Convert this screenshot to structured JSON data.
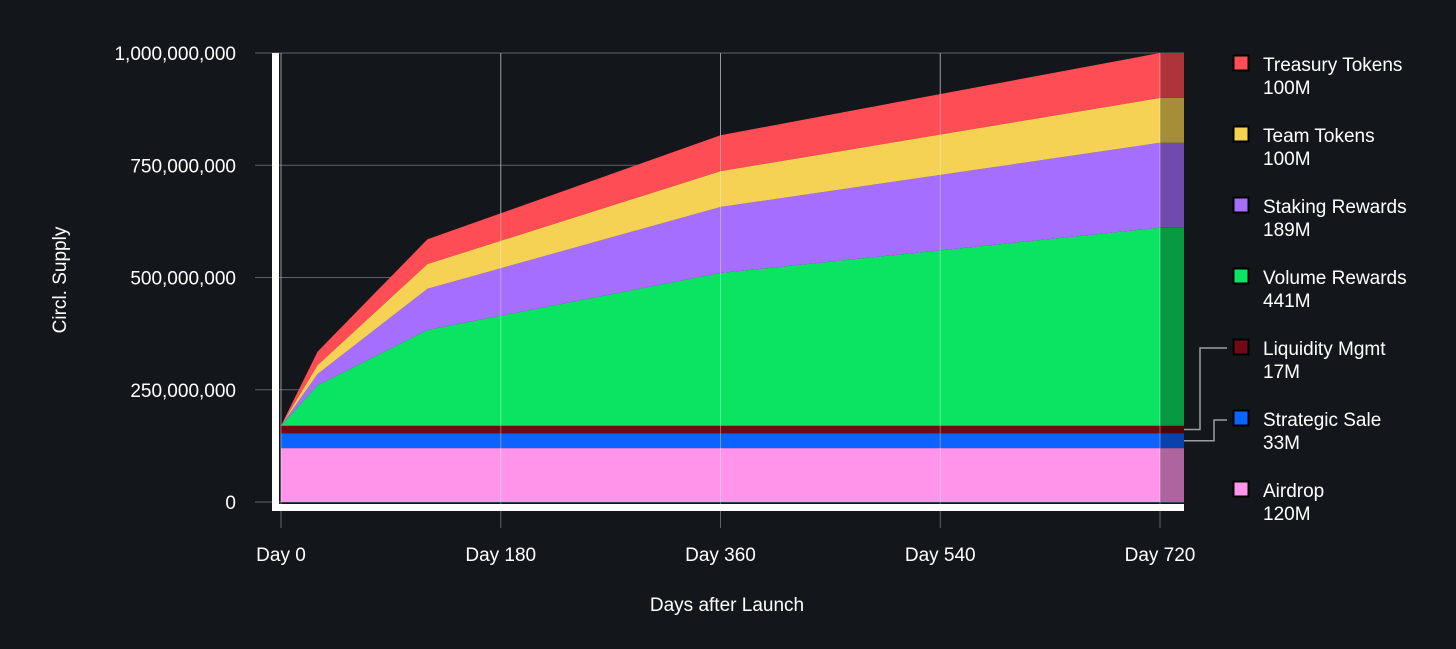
{
  "chart_data": {
    "type": "area",
    "stacked": true,
    "title": "",
    "xlabel": "Days after Launch",
    "ylabel": "Circl. Supply",
    "xlim": [
      0,
      720
    ],
    "ylim": [
      0,
      1000000000
    ],
    "grid": true,
    "legend_position": "right",
    "x_ticks": [
      {
        "value": 0,
        "label": "Day 0"
      },
      {
        "value": 180,
        "label": "Day 180"
      },
      {
        "value": 360,
        "label": "Day 360"
      },
      {
        "value": 540,
        "label": "Day 540"
      },
      {
        "value": 720,
        "label": "Day 720"
      }
    ],
    "y_ticks": [
      {
        "value": 0,
        "label": "0"
      },
      {
        "value": 250000000,
        "label": "250,000,000"
      },
      {
        "value": 500000000,
        "label": "500,000,000"
      },
      {
        "value": 750000000,
        "label": "750,000,000"
      },
      {
        "value": 1000000000,
        "label": "1,000,000,000"
      }
    ],
    "x": [
      0,
      30,
      120,
      360,
      720
    ],
    "series": [
      {
        "name": "Airdrop",
        "total_label": "120M",
        "color": "#ff94ea",
        "values": [
          120000000,
          120000000,
          120000000,
          120000000,
          120000000
        ]
      },
      {
        "name": "Strategic Sale",
        "total_label": "33M",
        "color": "#0d63ff",
        "values": [
          33000000,
          33000000,
          33000000,
          33000000,
          33000000
        ]
      },
      {
        "name": "Liquidity Mgmt",
        "total_label": "17M",
        "color": "#6e0b14",
        "values": [
          17000000,
          17000000,
          17000000,
          17000000,
          17000000
        ]
      },
      {
        "name": "Volume Rewards",
        "total_label": "441M",
        "color": "#0be463",
        "values": [
          0,
          90000000,
          213000000,
          340000000,
          441000000
        ]
      },
      {
        "name": "Staking Rewards",
        "total_label": "189M",
        "color": "#a56eff",
        "values": [
          0,
          25000000,
          92000000,
          147000000,
          189000000
        ]
      },
      {
        "name": "Team Tokens",
        "total_label": "100M",
        "color": "#f5d254",
        "values": [
          0,
          20000000,
          55000000,
          80000000,
          100000000
        ]
      },
      {
        "name": "Treasury Tokens",
        "total_label": "100M",
        "color": "#ff4d56",
        "values": [
          0,
          30000000,
          55000000,
          80000000,
          100000000
        ]
      }
    ]
  }
}
